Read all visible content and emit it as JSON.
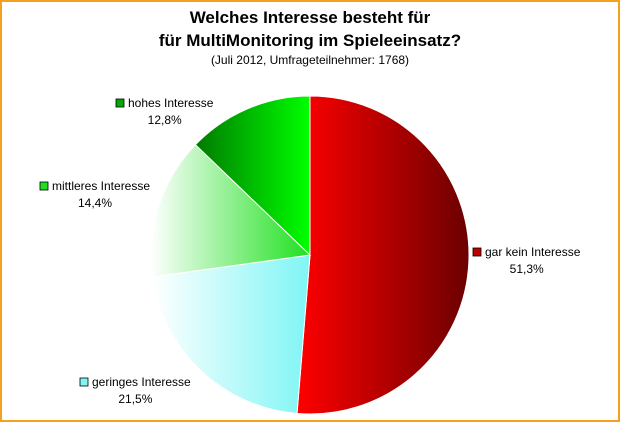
{
  "chart_data": {
    "type": "pie",
    "title": "Welches Interesse besteht für\nfür MultiMonitoring im Spieleeinsatz?",
    "title_lines": [
      "Welches Interesse besteht für",
      "für MultiMonitoring im Spieleeinsatz?"
    ],
    "subtitle": "(Juli 2012, Umfrageteilnehmer: 1768)",
    "start_angle_deg": 0,
    "direction": "clockwise",
    "slices": [
      {
        "label": "gar kein Interesse",
        "value": 51.3,
        "value_label": "51,3%",
        "color": "#ff0000",
        "color_dark": "#6b0000"
      },
      {
        "label": "geringes Interesse",
        "value": 21.5,
        "value_label": "21,5%",
        "color": "#ffffff",
        "color_dark": "#7ff5f5"
      },
      {
        "label": "mittleres Interesse",
        "value": 14.4,
        "value_label": "14,4%",
        "color": "#ffffff",
        "color_dark": "#1fe01f"
      },
      {
        "label": "hohes Interesse",
        "value": 12.8,
        "value_label": "12,8%",
        "color": "#00ff00",
        "color_dark": "#007a00"
      }
    ],
    "legend": "labels next to slices",
    "border_color": "#f5a01e"
  }
}
